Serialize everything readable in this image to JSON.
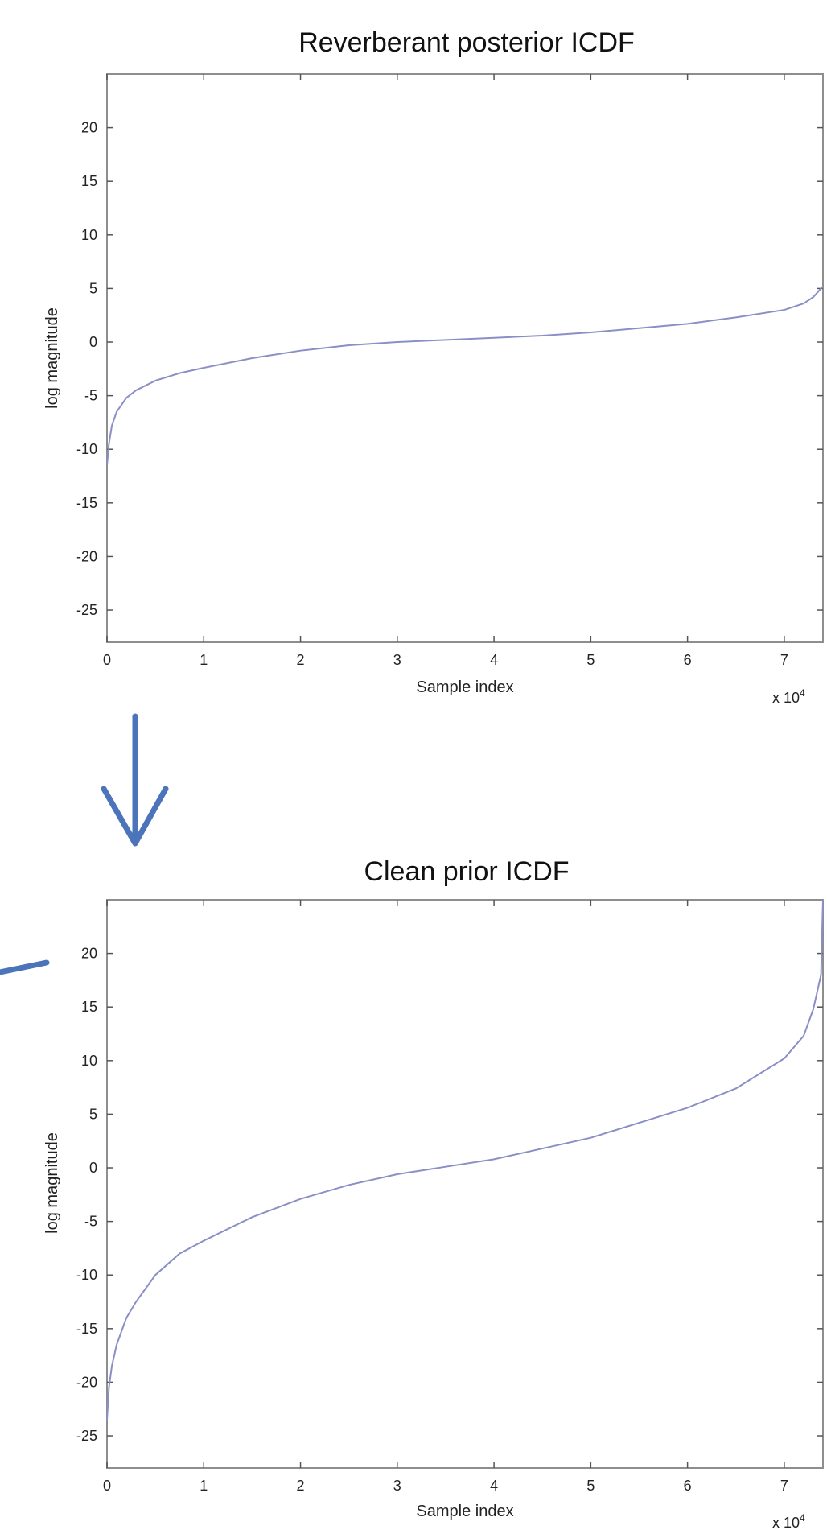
{
  "chart_data": [
    {
      "type": "line",
      "title": "Reverberant posterior ICDF",
      "xlabel": "Sample index",
      "ylabel": "log magnitude",
      "x_exponent_base": "x 10",
      "x_exponent_power": "4",
      "xlim": [
        0,
        7.4
      ],
      "ylim": [
        -28,
        25
      ],
      "x_ticks": [
        0,
        1,
        2,
        3,
        4,
        5,
        6,
        7
      ],
      "y_ticks": [
        -25,
        -20,
        -15,
        -10,
        -5,
        0,
        5,
        10,
        15,
        20
      ],
      "line_color": "#8a8fc6",
      "grid": false,
      "series": [
        {
          "x": [
            0,
            0.02,
            0.05,
            0.1,
            0.2,
            0.3,
            0.5,
            0.75,
            1.0,
            1.5,
            2.0,
            2.5,
            3.0,
            3.5,
            4.0,
            4.5,
            5.0,
            5.5,
            6.0,
            6.5,
            7.0,
            7.2,
            7.3,
            7.4
          ],
          "y": [
            -11.5,
            -9.5,
            -7.8,
            -6.5,
            -5.2,
            -4.5,
            -3.6,
            -2.9,
            -2.4,
            -1.5,
            -0.8,
            -0.3,
            0.0,
            0.2,
            0.4,
            0.6,
            0.9,
            1.3,
            1.7,
            2.3,
            3.0,
            3.6,
            4.2,
            5.2
          ]
        }
      ]
    },
    {
      "type": "line",
      "title": "Clean prior ICDF",
      "xlabel": "Sample index",
      "ylabel": "log magnitude",
      "x_exponent_base": "x 10",
      "x_exponent_power": "4",
      "xlim": [
        0,
        7.4
      ],
      "ylim": [
        -28,
        25
      ],
      "x_ticks": [
        0,
        1,
        2,
        3,
        4,
        5,
        6,
        7
      ],
      "y_ticks": [
        -25,
        -20,
        -15,
        -10,
        -5,
        0,
        5,
        10,
        15,
        20
      ],
      "line_color": "#8a8fc6",
      "grid": false,
      "series": [
        {
          "x": [
            0,
            0.02,
            0.05,
            0.1,
            0.2,
            0.3,
            0.5,
            0.75,
            1.0,
            1.5,
            2.0,
            2.5,
            3.0,
            3.5,
            4.0,
            4.5,
            5.0,
            5.5,
            6.0,
            6.5,
            7.0,
            7.2,
            7.3,
            7.38,
            7.4
          ],
          "y": [
            -23.5,
            -20.5,
            -18.5,
            -16.5,
            -14.0,
            -12.5,
            -10.0,
            -8.0,
            -6.8,
            -4.6,
            -2.9,
            -1.6,
            -0.6,
            0.1,
            0.8,
            1.8,
            2.8,
            4.2,
            5.6,
            7.4,
            10.2,
            12.3,
            14.8,
            18.0,
            25.0
          ]
        }
      ]
    }
  ],
  "arrow_color": "#4b74ba"
}
